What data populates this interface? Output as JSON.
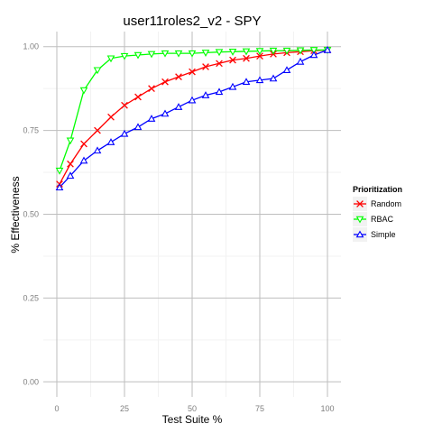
{
  "chart_data": {
    "type": "line",
    "title": "user11roles2_v2 - SPY",
    "xlabel": "Test Suite %",
    "ylabel": "% Effectiveness",
    "xlim": [
      0,
      100
    ],
    "ylim": [
      0,
      1
    ],
    "x_ticks": [
      0,
      25,
      50,
      75,
      100
    ],
    "x_tick_labels": [
      "0",
      "25",
      "50",
      "75",
      "100"
    ],
    "y_ticks": [
      0,
      0.25,
      0.5,
      0.75,
      1
    ],
    "y_tick_labels": [
      "0.00",
      "0.25",
      "0.50",
      "0.75",
      "1.00"
    ],
    "grid": true,
    "legend": {
      "title": "Prioritization",
      "position": "right"
    },
    "x": [
      1,
      5,
      10,
      15,
      20,
      25,
      30,
      35,
      40,
      45,
      50,
      55,
      60,
      65,
      70,
      75,
      80,
      85,
      90,
      95,
      100
    ],
    "series": [
      {
        "name": "Random",
        "color": "#ff0000",
        "marker": "x",
        "values": [
          0.59,
          0.65,
          0.71,
          0.75,
          0.79,
          0.825,
          0.85,
          0.875,
          0.895,
          0.91,
          0.925,
          0.94,
          0.95,
          0.96,
          0.965,
          0.972,
          0.978,
          0.982,
          0.985,
          0.988,
          0.99
        ]
      },
      {
        "name": "RBAC",
        "color": "#00ff00",
        "marker": "triangle-down",
        "values": [
          0.63,
          0.72,
          0.87,
          0.93,
          0.965,
          0.972,
          0.975,
          0.978,
          0.98,
          0.98,
          0.98,
          0.982,
          0.984,
          0.985,
          0.986,
          0.987,
          0.988,
          0.988,
          0.989,
          0.99,
          0.99
        ]
      },
      {
        "name": "Simple",
        "color": "#0000ff",
        "marker": "triangle-up",
        "values": [
          0.58,
          0.615,
          0.66,
          0.69,
          0.715,
          0.74,
          0.76,
          0.785,
          0.8,
          0.82,
          0.84,
          0.855,
          0.865,
          0.88,
          0.895,
          0.9,
          0.905,
          0.93,
          0.955,
          0.975,
          0.99
        ]
      }
    ]
  }
}
